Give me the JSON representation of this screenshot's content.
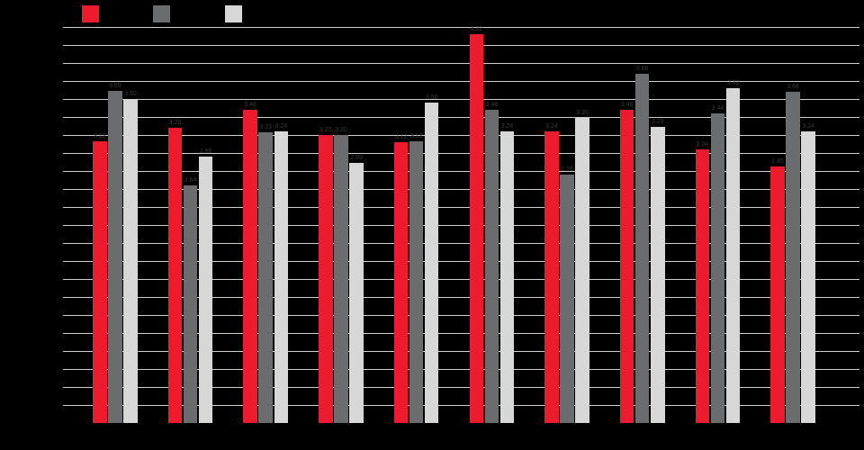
{
  "colors": {
    "background": "#000000",
    "gridline": "#cdcdcd",
    "value_label": "#3b3b3b",
    "series_red": "#ec1b2d",
    "series_dark_gray": "#6b6c6e",
    "series_light_gray": "#d7d7d7"
  },
  "legend": {
    "items": [
      {
        "label": "",
        "color": "#ec1b2d",
        "x": 91
      },
      {
        "label": "",
        "color": "#6b6c6e",
        "x": 170
      },
      {
        "label": "",
        "color": "#d7d7d7",
        "x": 250
      }
    ]
  },
  "chart_data": {
    "type": "bar",
    "title": "",
    "xlabel": "",
    "ylabel": "",
    "categories": [
      "",
      "",
      "",
      "",
      "",
      "",
      "",
      "",
      "",
      ""
    ],
    "series": [
      {
        "name": "",
        "color": "#ec1b2d",
        "values": [
          3.13,
          3.28,
          3.48,
          3.2,
          3.12,
          4.32,
          3.24,
          3.48,
          3.04,
          2.85
        ],
        "labels": [
          "3.13",
          "3.28",
          "3.48",
          "3.20",
          "3.12",
          "4.32",
          "3.24",
          "3.48",
          "3.04",
          "2.85"
        ]
      },
      {
        "name": "",
        "color": "#6b6c6e",
        "values": [
          3.69,
          2.64,
          3.23,
          3.2,
          3.13,
          3.48,
          2.76,
          3.88,
          3.44,
          3.68
        ],
        "labels": [
          "3.69",
          "2.64",
          "3.23",
          "3.20",
          "3.13",
          "3.48",
          "2.76",
          "3.88",
          "3.44",
          "3.68"
        ]
      },
      {
        "name": "",
        "color": "#d7d7d7",
        "values": [
          3.6,
          2.96,
          3.24,
          2.89,
          3.56,
          3.24,
          3.39,
          3.29,
          3.72,
          3.24
        ],
        "labels": [
          "3.60",
          "2.96",
          "3.24",
          "2.89",
          "3.56",
          "3.24",
          "3.39",
          "3.29",
          "3.72",
          "3.24"
        ]
      }
    ],
    "ylim": [
      0,
      4.4
    ],
    "gridline_step": 0.2,
    "grid": true,
    "legend_position": "top",
    "bar_value_labels_visible": true,
    "axis_tick_labels_visible": false
  }
}
